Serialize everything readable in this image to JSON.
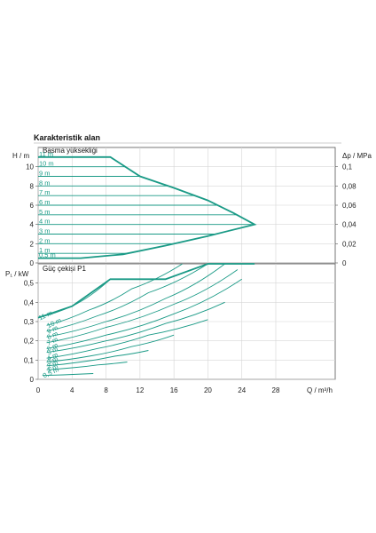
{
  "chart_data": [
    {
      "type": "line",
      "title": "Karakteristik alan",
      "panel_title": "Basma yüksekliği",
      "ylabel": "H / m",
      "y2label": "Δp / MPa",
      "xlim": [
        0,
        35
      ],
      "ylim": [
        0,
        12
      ],
      "y2lim": [
        0,
        0.12
      ],
      "yticks": [
        0,
        2,
        4,
        6,
        8,
        10
      ],
      "y2ticks": [
        {
          "v": 0,
          "t": "0"
        },
        {
          "v": 0.02,
          "t": "0,02"
        },
        {
          "v": 0.04,
          "t": "0,04"
        },
        {
          "v": 0.06,
          "t": "0,06"
        },
        {
          "v": 0.08,
          "t": "0,08"
        },
        {
          "v": 0.1,
          "t": "0,1"
        }
      ],
      "grid": true,
      "envelope": [
        {
          "x": 0,
          "y": 11
        },
        {
          "x": 8.5,
          "y": 11
        },
        {
          "x": 12,
          "y": 9
        },
        {
          "x": 16,
          "y": 7.8
        },
        {
          "x": 20,
          "y": 6.5
        },
        {
          "x": 23,
          "y": 5.2
        },
        {
          "x": 25.5,
          "y": 4
        },
        {
          "x": 20,
          "y": 2.8
        },
        {
          "x": 15,
          "y": 1.8
        },
        {
          "x": 10,
          "y": 0.9
        },
        {
          "x": 5,
          "y": 0.5
        },
        {
          "x": 0,
          "y": 0.5
        }
      ],
      "series": [
        {
          "name": "11 m",
          "y": 11
        },
        {
          "name": "10 m",
          "y": 10
        },
        {
          "name": "9 m",
          "y": 9
        },
        {
          "name": "8 m",
          "y": 8
        },
        {
          "name": "7 m",
          "y": 7
        },
        {
          "name": "6 m",
          "y": 6
        },
        {
          "name": "5 m",
          "y": 5
        },
        {
          "name": "4 m",
          "y": 4
        },
        {
          "name": "3 m",
          "y": 3
        },
        {
          "name": "2 m",
          "y": 2
        },
        {
          "name": "1 m",
          "y": 1
        },
        {
          "name": "0,5 m",
          "y": 0.5
        }
      ],
      "curve_color": "#1a9a86"
    },
    {
      "type": "line",
      "panel_title": "Güç çekişi P1",
      "ylabel": "P₁ / kW",
      "xlabel": "Q / m³/h",
      "xlim": [
        0,
        35
      ],
      "ylim": [
        0,
        0.6
      ],
      "xticks": [
        0,
        4,
        8,
        12,
        16,
        20,
        24,
        28
      ],
      "yticks": [
        {
          "v": 0,
          "t": "0"
        },
        {
          "v": 0.1,
          "t": "0,1"
        },
        {
          "v": 0.2,
          "t": "0,2"
        },
        {
          "v": 0.3,
          "t": "0,3"
        },
        {
          "v": 0.4,
          "t": "0,4"
        },
        {
          "v": 0.5,
          "t": "0,5"
        }
      ],
      "grid": true,
      "envelope": [
        {
          "x": 0,
          "y": 0.32
        },
        {
          "x": 4,
          "y": 0.38
        },
        {
          "x": 8.5,
          "y": 0.52
        },
        {
          "x": 15,
          "y": 0.52
        },
        {
          "x": 20,
          "y": 0.6
        },
        {
          "x": 25.5,
          "y": 0.6
        }
      ],
      "series": [
        {
          "name": "11 m",
          "points": [
            [
              0,
              0.32
            ],
            [
              4,
              0.38
            ],
            [
              8.5,
              0.52
            ]
          ]
        },
        {
          "name": "10 m",
          "points": [
            [
              1,
              0.28
            ],
            [
              6,
              0.36
            ],
            [
              11,
              0.47
            ],
            [
              17,
              0.6
            ]
          ]
        },
        {
          "name": "9 m",
          "points": [
            [
              1,
              0.25
            ],
            [
              7,
              0.33
            ],
            [
              13,
              0.45
            ],
            [
              20,
              0.6
            ]
          ]
        },
        {
          "name": "8 m",
          "points": [
            [
              1,
              0.22
            ],
            [
              8,
              0.3
            ],
            [
              15,
              0.42
            ],
            [
              22,
              0.6
            ]
          ]
        },
        {
          "name": "7 m",
          "points": [
            [
              1,
              0.19
            ],
            [
              8,
              0.27
            ],
            [
              16,
              0.39
            ],
            [
              23.5,
              0.57
            ]
          ]
        },
        {
          "name": "6 m",
          "points": [
            [
              1,
              0.16
            ],
            [
              8,
              0.23
            ],
            [
              16,
              0.34
            ],
            [
              24,
              0.52
            ]
          ]
        },
        {
          "name": "5 m",
          "points": [
            [
              1,
              0.14
            ],
            [
              8,
              0.2
            ],
            [
              15,
              0.29
            ],
            [
              22,
              0.4
            ]
          ]
        },
        {
          "name": "4 m",
          "points": [
            [
              1,
              0.11
            ],
            [
              7,
              0.16
            ],
            [
              13,
              0.23
            ],
            [
              20,
              0.31
            ]
          ]
        },
        {
          "name": "3 m",
          "points": [
            [
              1,
              0.09
            ],
            [
              6,
              0.12
            ],
            [
              11,
              0.17
            ],
            [
              16,
              0.23
            ]
          ]
        },
        {
          "name": "2 m",
          "points": [
            [
              1,
              0.07
            ],
            [
              5,
              0.09
            ],
            [
              9,
              0.12
            ],
            [
              13,
              0.15
            ]
          ]
        },
        {
          "name": "1 m",
          "points": [
            [
              1,
              0.05
            ],
            [
              4,
              0.06
            ],
            [
              7,
              0.075
            ],
            [
              10.5,
              0.09
            ]
          ]
        },
        {
          "name": "0,5 m",
          "points": [
            [
              0.5,
              0.02
            ],
            [
              6.5,
              0.03
            ]
          ]
        }
      ],
      "curve_color": "#1a9a86"
    }
  ]
}
